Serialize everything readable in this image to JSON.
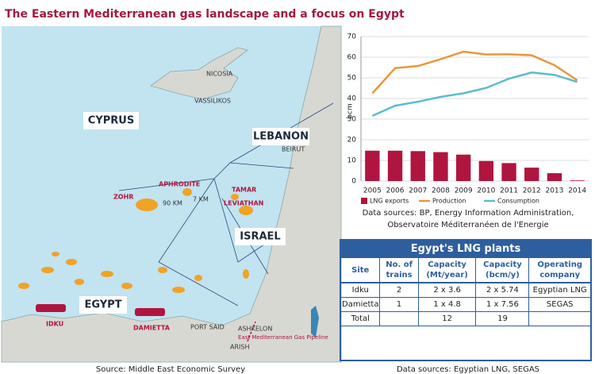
{
  "title": "The Eastern Mediterranean gas landscape and a focus on Egypt",
  "map": {
    "cyprus": "CYPRUS",
    "nicosia": "NICOSIA",
    "vassilikos": "VASSILIKOS",
    "lebanon": "LEBANON",
    "beirut": "BEIRUT",
    "aphrodite": "APHRODITE",
    "tamar": "TAMAR",
    "zohr": "ZOHR",
    "km90": "90 KM",
    "km7": "7 KM",
    "leviathan": "LEVIATHAN",
    "israel": "ISRAEL",
    "egypt": "EGYPT",
    "ashkelon": "ASHKELON",
    "pipeline": "East Mediterranean Gas Pipeline",
    "idku": "IDKU",
    "damietta": "DAMIETTA",
    "portsaid": "PORT SAID",
    "arish": "ARISH",
    "source": "Source: Middle East Economic Survey"
  },
  "chart_data": {
    "type": "bar-line",
    "ylabel": "bcm",
    "categories": [
      "2005",
      "2006",
      "2007",
      "2008",
      "2009",
      "2010",
      "2011",
      "2012",
      "2013",
      "2014"
    ],
    "series": [
      {
        "name": "LNG exports",
        "kind": "bar",
        "color": "#b0153f",
        "values": [
          14.7,
          14.7,
          14.5,
          14,
          12.8,
          9.7,
          8.7,
          6.5,
          3.8,
          0.3
        ]
      },
      {
        "name": "Production",
        "kind": "line",
        "color": "#e8973a",
        "values": [
          42.5,
          54.7,
          55.7,
          59,
          62.7,
          61.3,
          61.4,
          60.9,
          56.1,
          48.8
        ]
      },
      {
        "name": "Consumption",
        "kind": "line",
        "color": "#5bbccc",
        "values": [
          31.6,
          36.5,
          38.4,
          40.8,
          42.5,
          45.1,
          49.6,
          52.6,
          51.4,
          48
        ]
      }
    ],
    "ylim": [
      0,
      70
    ],
    "yticks": [
      0,
      10,
      20,
      30,
      40,
      50,
      60,
      70
    ],
    "grid": true,
    "sources": "Data sources: BP, Energy Information Administration, Observatoire Méditerranéen de l'Energie"
  },
  "table": {
    "title": "Egypt's LNG plants",
    "columns": [
      "Site",
      "No. of trains",
      "Capacity (Mt/year)",
      "Capacity (bcm/y)",
      "Operating company"
    ],
    "rows": [
      [
        "Idku",
        "2",
        "2 x 3.6",
        "2 x 5.74",
        "Egyptian LNG"
      ],
      [
        "Damietta",
        "1",
        "1 x 4.8",
        "1 x 7.56",
        "SEGAS"
      ],
      [
        "Total",
        null,
        "12",
        "19",
        null
      ]
    ],
    "source": "Data sources: Egyptian LNG, SEGAS"
  }
}
